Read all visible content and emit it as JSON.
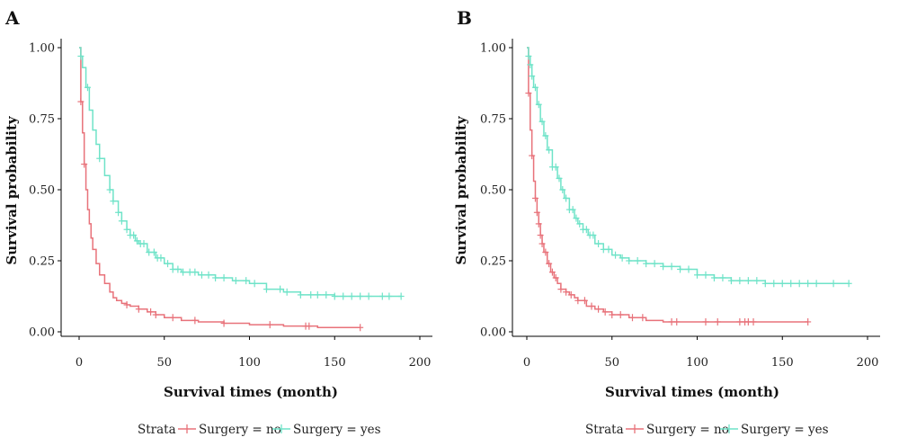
{
  "legend": {
    "title": "Strata",
    "items": [
      {
        "label": "Surgery = no",
        "color": "#E8727A"
      },
      {
        "label": "Surgery = yes",
        "color": "#6FE3C8"
      }
    ]
  },
  "chart_data": [
    {
      "type": "line",
      "panel": "A",
      "xlabel": "Survival times (month)",
      "ylabel": "Survival probability",
      "xlim": [
        0,
        200
      ],
      "ylim": [
        0,
        1
      ],
      "xticks": [
        0,
        50,
        100,
        150,
        200
      ],
      "yticks": [
        "0.00",
        "0.25",
        "0.50",
        "0.75",
        "1.00"
      ],
      "grid": false,
      "series": [
        {
          "name": "Surgery = no",
          "color": "#E8727A",
          "x": [
            0,
            1,
            2,
            3,
            4,
            5,
            6,
            7,
            8,
            10,
            12,
            15,
            18,
            20,
            22,
            25,
            28,
            30,
            35,
            40,
            45,
            50,
            60,
            70,
            85,
            100,
            120,
            140,
            165
          ],
          "y": [
            1.0,
            0.81,
            0.7,
            0.59,
            0.5,
            0.43,
            0.38,
            0.33,
            0.29,
            0.24,
            0.2,
            0.17,
            0.14,
            0.12,
            0.11,
            0.1,
            0.095,
            0.09,
            0.08,
            0.07,
            0.06,
            0.05,
            0.04,
            0.035,
            0.03,
            0.025,
            0.02,
            0.015,
            0.015
          ],
          "censor_x": [
            1,
            3,
            28,
            35,
            42,
            45,
            55,
            68,
            85,
            112,
            133,
            135,
            165
          ]
        },
        {
          "name": "Surgery = yes",
          "color": "#6FE3C8",
          "x": [
            0,
            1,
            2,
            4,
            6,
            8,
            10,
            12,
            15,
            18,
            20,
            23,
            25,
            28,
            30,
            33,
            35,
            40,
            45,
            50,
            55,
            60,
            70,
            80,
            90,
            100,
            110,
            120,
            130,
            150,
            170,
            189
          ],
          "y": [
            1.0,
            0.97,
            0.93,
            0.86,
            0.78,
            0.71,
            0.66,
            0.61,
            0.55,
            0.5,
            0.46,
            0.42,
            0.39,
            0.36,
            0.34,
            0.32,
            0.31,
            0.28,
            0.26,
            0.24,
            0.22,
            0.21,
            0.2,
            0.19,
            0.18,
            0.17,
            0.15,
            0.14,
            0.13,
            0.125,
            0.125,
            0.125
          ],
          "censor_x": [
            1,
            5,
            12,
            18,
            20,
            23,
            25,
            28,
            30,
            32,
            34,
            36,
            38,
            41,
            44,
            46,
            48,
            52,
            55,
            58,
            61,
            65,
            68,
            72,
            76,
            80,
            85,
            92,
            98,
            103,
            110,
            118,
            122,
            130,
            136,
            140,
            145,
            150,
            155,
            160,
            165,
            170,
            178,
            182,
            189
          ]
        }
      ]
    },
    {
      "type": "line",
      "panel": "B",
      "xlabel": "Survival times (month)",
      "ylabel": "Survival probability",
      "xlim": [
        0,
        200
      ],
      "ylim": [
        0,
        1
      ],
      "xticks": [
        0,
        50,
        100,
        150,
        200
      ],
      "yticks": [
        "0.00",
        "0.25",
        "0.50",
        "0.75",
        "1.00"
      ],
      "grid": false,
      "series": [
        {
          "name": "Surgery = no",
          "color": "#E8727A",
          "x": [
            0,
            1,
            2,
            3,
            4,
            5,
            6,
            7,
            8,
            9,
            10,
            12,
            14,
            16,
            18,
            20,
            23,
            25,
            28,
            30,
            35,
            40,
            45,
            50,
            60,
            70,
            80,
            100,
            130,
            165
          ],
          "y": [
            1.0,
            0.84,
            0.71,
            0.62,
            0.53,
            0.47,
            0.42,
            0.38,
            0.34,
            0.31,
            0.28,
            0.24,
            0.21,
            0.19,
            0.17,
            0.15,
            0.14,
            0.13,
            0.12,
            0.11,
            0.09,
            0.08,
            0.07,
            0.06,
            0.05,
            0.04,
            0.035,
            0.035,
            0.035,
            0.035
          ],
          "censor_x": [
            1,
            3,
            5,
            6,
            7,
            8,
            9,
            11,
            13,
            15,
            17,
            20,
            23,
            26,
            30,
            34,
            38,
            42,
            46,
            50,
            55,
            62,
            68,
            85,
            88,
            105,
            112,
            125,
            128,
            130,
            133,
            165
          ]
        },
        {
          "name": "Surgery = yes",
          "color": "#6FE3C8",
          "x": [
            0,
            1,
            2,
            3,
            4,
            6,
            8,
            10,
            12,
            15,
            18,
            20,
            22,
            25,
            28,
            30,
            33,
            36,
            40,
            45,
            50,
            55,
            60,
            70,
            80,
            90,
            100,
            110,
            120,
            140,
            160,
            189
          ],
          "y": [
            1.0,
            0.97,
            0.94,
            0.9,
            0.86,
            0.8,
            0.74,
            0.69,
            0.64,
            0.58,
            0.54,
            0.5,
            0.47,
            0.43,
            0.4,
            0.38,
            0.36,
            0.34,
            0.31,
            0.29,
            0.27,
            0.26,
            0.25,
            0.24,
            0.23,
            0.22,
            0.2,
            0.19,
            0.18,
            0.17,
            0.17,
            0.17
          ],
          "censor_x": [
            1,
            2,
            3,
            5,
            7,
            9,
            11,
            13,
            15,
            17,
            19,
            21,
            23,
            25,
            27,
            29,
            31,
            33,
            35,
            37,
            39,
            42,
            45,
            48,
            52,
            56,
            60,
            65,
            70,
            75,
            80,
            85,
            90,
            95,
            100,
            105,
            110,
            115,
            120,
            125,
            130,
            135,
            140,
            145,
            150,
            155,
            160,
            165,
            170,
            180,
            189
          ]
        }
      ]
    }
  ]
}
